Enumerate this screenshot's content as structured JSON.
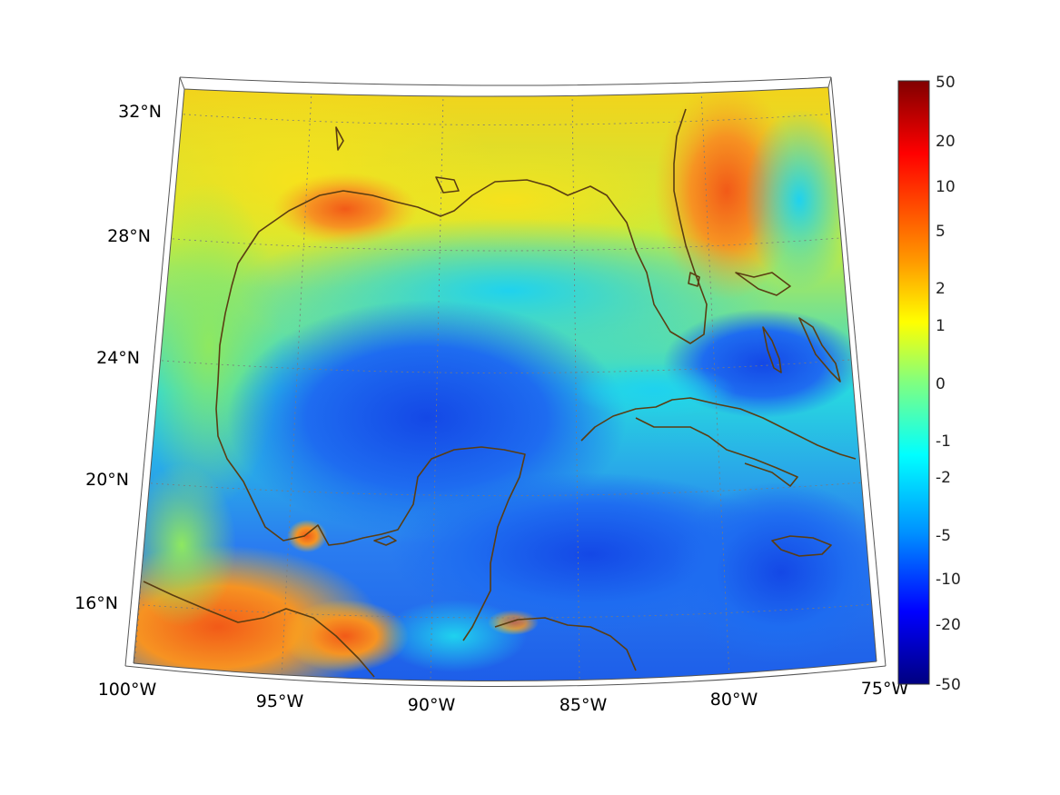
{
  "map": {
    "projection": "lambert-conformal-conic",
    "lat_range": [
      14,
      33
    ],
    "lon_range": [
      -100,
      -75
    ],
    "lat_ticks": [
      {
        "value": 32,
        "label": "32°N"
      },
      {
        "value": 28,
        "label": "28°N"
      },
      {
        "value": 24,
        "label": "24°N"
      },
      {
        "value": 20,
        "label": "20°N"
      },
      {
        "value": 16,
        "label": "16°N"
      }
    ],
    "lon_ticks": [
      {
        "value": -100,
        "label": "100°W"
      },
      {
        "value": -95,
        "label": "95°W"
      },
      {
        "value": -90,
        "label": "90°W"
      },
      {
        "value": -85,
        "label": "85°W"
      },
      {
        "value": -80,
        "label": "80°W"
      },
      {
        "value": -75,
        "label": "75°W"
      }
    ],
    "grid": true,
    "coastline_color": "#5a3d12",
    "field": "colored scalar field over Gulf of Mexico and Caribbean"
  },
  "colorbar": {
    "colormap": "jet",
    "ticks": [
      "50",
      "20",
      "10",
      "5",
      "2",
      "1",
      "0",
      "-1",
      "-2",
      "-5",
      "-10",
      "-20",
      "-50"
    ],
    "placement": "right"
  }
}
